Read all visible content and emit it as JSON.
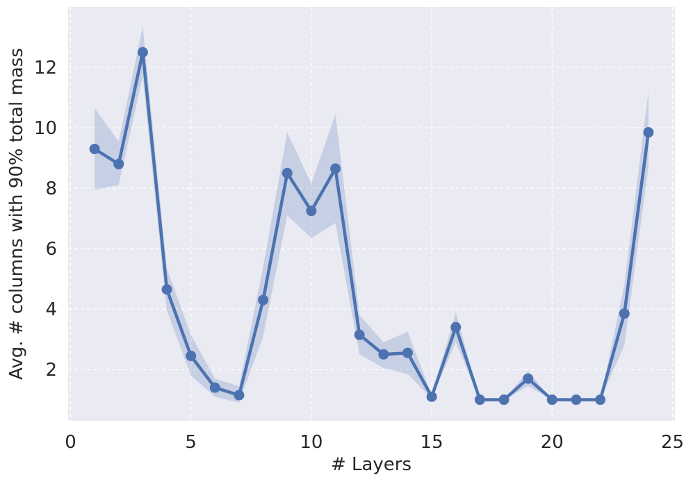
{
  "chart_data": {
    "type": "line",
    "title": "",
    "xlabel": "# Layers",
    "ylabel": "Avg. # columns with 90% total mass",
    "xlim": [
      -0.1,
      25.1
    ],
    "ylim": [
      0.3,
      14.0
    ],
    "x_ticks": [
      0,
      5,
      10,
      15,
      20,
      25
    ],
    "y_ticks": [
      2,
      4,
      6,
      8,
      10,
      12
    ],
    "grid": true,
    "colors": {
      "background": "#eaeaf2",
      "grid": "#ffffff",
      "line": "#4c72b0",
      "band": "#4c72b0"
    },
    "series": [
      {
        "x": [
          1,
          2,
          3,
          4,
          5,
          6,
          7,
          8,
          9,
          10,
          11,
          12,
          13,
          14,
          15,
          16,
          17,
          18,
          19,
          20,
          21,
          22,
          23,
          24
        ],
        "values": [
          9.3,
          8.8,
          12.5,
          4.65,
          2.45,
          1.4,
          1.15,
          4.3,
          8.5,
          7.25,
          8.65,
          3.15,
          2.5,
          2.55,
          1.1,
          3.4,
          1.0,
          1.0,
          1.7,
          1.0,
          1.0,
          1.0,
          3.85,
          9.85
        ],
        "lower": [
          7.95,
          8.1,
          11.7,
          3.95,
          1.8,
          1.1,
          0.9,
          3.1,
          7.1,
          6.35,
          6.85,
          2.5,
          2.05,
          1.85,
          1.05,
          2.9,
          1.0,
          1.0,
          1.45,
          1.0,
          1.0,
          1.0,
          2.8,
          8.7
        ],
        "upper": [
          10.65,
          9.55,
          13.35,
          5.35,
          3.15,
          1.7,
          1.45,
          5.4,
          9.85,
          8.15,
          10.45,
          3.8,
          2.9,
          3.25,
          1.15,
          3.9,
          1.0,
          1.0,
          1.95,
          1.0,
          1.0,
          1.0,
          4.8,
          11.2
        ]
      }
    ]
  }
}
